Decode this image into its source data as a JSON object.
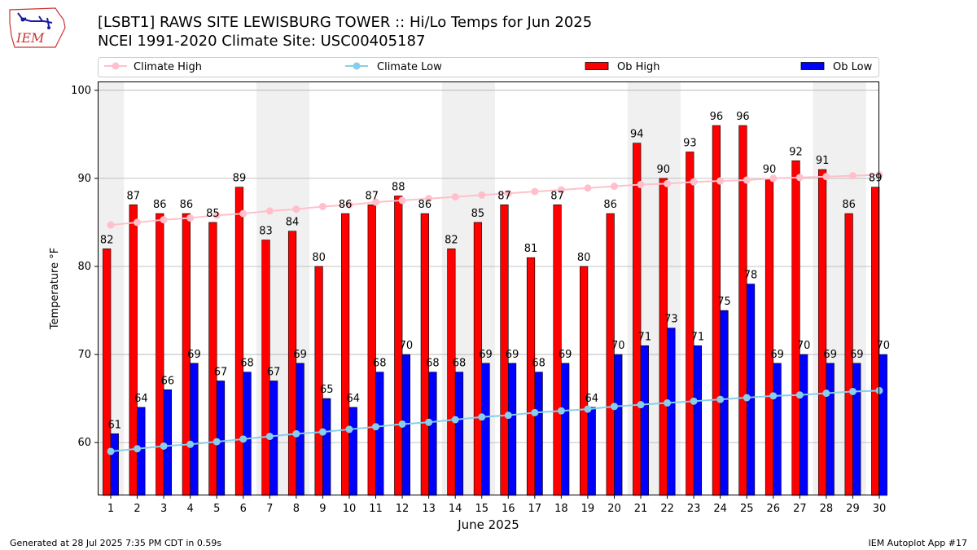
{
  "header": {
    "title_line1": "[LSBT1] RAWS SITE  LEWISBURG TOWER :: Hi/Lo Temps for Jun 2025",
    "title_line2": "NCEI 1991-2020 Climate Site: USC00405187",
    "logo_text": "IEM"
  },
  "footer": {
    "generated": "Generated at 28 Jul 2025 7:35 PM CDT in 0.59s",
    "app": "IEM Autoplot App #17"
  },
  "colors": {
    "ob_high": "#ff0000",
    "ob_low": "#0000ff",
    "climate_high": "#ffc0cb",
    "climate_low": "#87ceeb",
    "weekend_band": "#f0f0f0",
    "grid": "#b0b0b0"
  },
  "chart_data": {
    "type": "bar",
    "xlabel": "June 2025",
    "ylabel": "Temperature °F",
    "ylim": [
      54,
      101
    ],
    "yticks": [
      60,
      70,
      80,
      90,
      100
    ],
    "grid": true,
    "legend_placement": "top",
    "categories": [
      1,
      2,
      3,
      4,
      5,
      6,
      7,
      8,
      9,
      10,
      11,
      12,
      13,
      14,
      15,
      16,
      17,
      18,
      19,
      20,
      21,
      22,
      23,
      24,
      25,
      26,
      27,
      28,
      29,
      30
    ],
    "shaded_days": [
      1,
      7,
      8,
      14,
      15,
      21,
      22,
      28,
      29
    ],
    "series": [
      {
        "name": "Climate High",
        "kind": "line",
        "values": [
          84.7,
          85.0,
          85.3,
          85.5,
          85.8,
          86.0,
          86.3,
          86.5,
          86.8,
          87.0,
          87.3,
          87.5,
          87.7,
          87.9,
          88.1,
          88.3,
          88.5,
          88.7,
          88.9,
          89.1,
          89.3,
          89.4,
          89.6,
          89.7,
          89.8,
          90.0,
          90.1,
          90.2,
          90.3,
          90.4
        ]
      },
      {
        "name": "Climate Low",
        "kind": "line",
        "values": [
          59.0,
          59.3,
          59.6,
          59.8,
          60.1,
          60.4,
          60.7,
          61.0,
          61.2,
          61.5,
          61.8,
          62.1,
          62.3,
          62.6,
          62.9,
          63.1,
          63.4,
          63.6,
          63.8,
          64.1,
          64.3,
          64.5,
          64.7,
          64.9,
          65.1,
          65.3,
          65.4,
          65.6,
          65.8,
          65.9
        ]
      },
      {
        "name": "Ob High",
        "kind": "bar",
        "values": [
          82,
          87,
          86,
          86,
          85,
          89,
          83,
          84,
          80,
          86,
          87,
          88,
          86,
          82,
          85,
          87,
          81,
          87,
          80,
          86,
          94,
          90,
          93,
          96,
          96,
          90,
          92,
          91,
          86,
          89
        ]
      },
      {
        "name": "Ob Low",
        "kind": "bar",
        "values": [
          61,
          64,
          66,
          69,
          67,
          68,
          67,
          69,
          65,
          64,
          68,
          70,
          68,
          68,
          69,
          69,
          68,
          69,
          64,
          70,
          71,
          73,
          71,
          75,
          78,
          69,
          70,
          69,
          69,
          70
        ]
      }
    ]
  }
}
